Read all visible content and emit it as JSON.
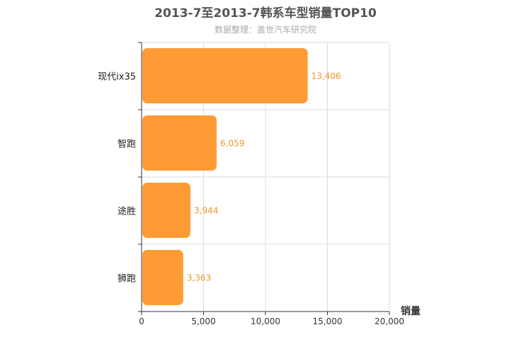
{
  "chart_data": {
    "type": "bar",
    "orientation": "horizontal",
    "title": "2013-7至2013-7韩系车型销量TOP10",
    "subtitle": "数据整理：盖世汽车研究院",
    "categories": [
      "现代ix35",
      "智跑",
      "途胜",
      "狮跑"
    ],
    "values": [
      13406,
      6059,
      3944,
      3363
    ],
    "value_labels": [
      "13,406",
      "6,059",
      "3,944",
      "3,363"
    ],
    "xlabel": "销量",
    "xlim": [
      0,
      20000
    ],
    "xticks": [
      0,
      5000,
      10000,
      15000,
      20000
    ],
    "xtick_labels": [
      "0",
      "5,000",
      "10,000",
      "15,000",
      "20,000"
    ],
    "grid": true,
    "bar_color": "#ff9b35"
  }
}
